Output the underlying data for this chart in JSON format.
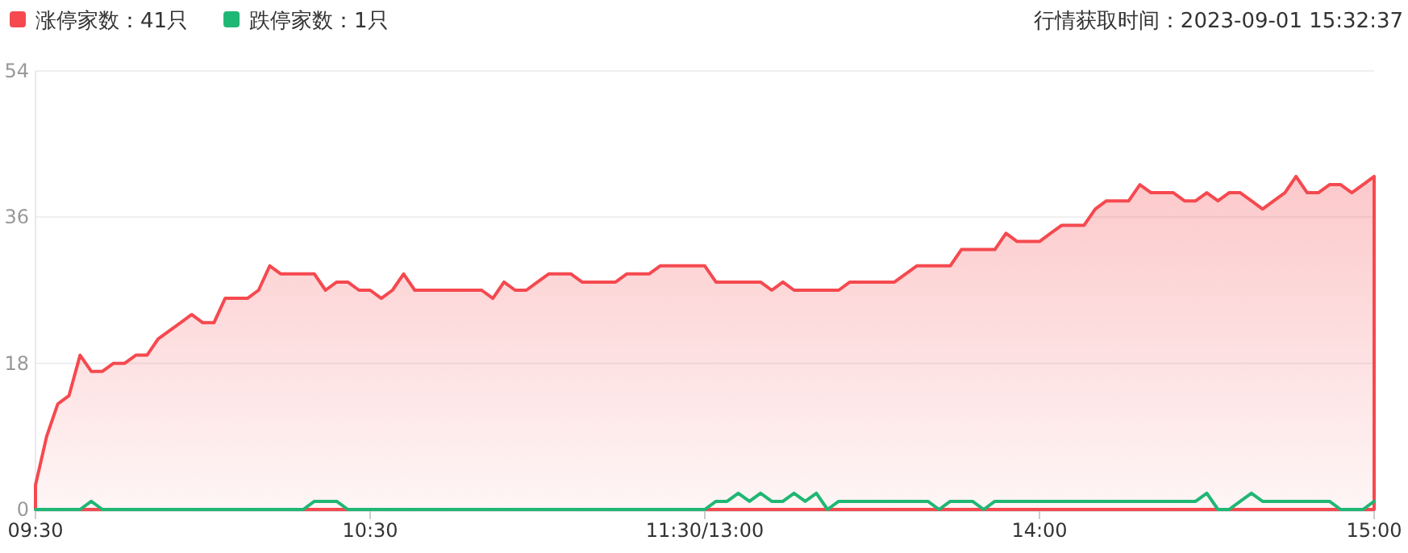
{
  "chart_data": {
    "type": "area",
    "title": "行情获取时间：2023-09-01 15:32:37",
    "categories": [
      "09:30",
      null,
      null,
      null,
      null,
      null,
      null,
      null,
      null,
      null,
      null,
      null,
      null,
      null,
      null,
      null,
      null,
      null,
      null,
      null,
      null,
      null,
      null,
      null,
      null,
      null,
      null,
      null,
      null,
      null,
      "10:30",
      null,
      null,
      null,
      null,
      null,
      null,
      null,
      null,
      null,
      null,
      null,
      null,
      null,
      null,
      null,
      null,
      null,
      null,
      null,
      null,
      null,
      null,
      null,
      null,
      null,
      null,
      null,
      null,
      null,
      "11:30/13:00",
      null,
      null,
      null,
      null,
      null,
      null,
      null,
      null,
      null,
      null,
      null,
      null,
      null,
      null,
      null,
      null,
      null,
      null,
      null,
      null,
      null,
      null,
      null,
      null,
      null,
      null,
      null,
      null,
      null,
      "14:00",
      null,
      null,
      null,
      null,
      null,
      null,
      null,
      null,
      null,
      null,
      null,
      null,
      null,
      null,
      null,
      null,
      null,
      null,
      null,
      null,
      null,
      null,
      null,
      null,
      null,
      null,
      null,
      null,
      null,
      "15:00"
    ],
    "ylim": [
      0,
      54
    ],
    "yticks": [
      0,
      18,
      36,
      54
    ],
    "grid": "y",
    "legend": "top left",
    "series": [
      {
        "name": "涨停家数：41只",
        "color": "#f5494f",
        "values": [
          3,
          9,
          13,
          14,
          19,
          17,
          17,
          18,
          18,
          19,
          19,
          21,
          22,
          23,
          24,
          23,
          23,
          26,
          26,
          26,
          27,
          30,
          29,
          29,
          29,
          29,
          27,
          28,
          28,
          27,
          27,
          26,
          27,
          29,
          27,
          27,
          27,
          27,
          27,
          27,
          27,
          26,
          28,
          27,
          27,
          28,
          29,
          29,
          29,
          28,
          28,
          28,
          28,
          29,
          29,
          29,
          30,
          30,
          30,
          30,
          30,
          28,
          28,
          28,
          28,
          28,
          27,
          28,
          27,
          27,
          27,
          27,
          27,
          28,
          28,
          28,
          28,
          28,
          29,
          30,
          30,
          30,
          30,
          32,
          32,
          32,
          32,
          34,
          33,
          33,
          33,
          34,
          35,
          35,
          35,
          37,
          38,
          38,
          38,
          40,
          39,
          39,
          39,
          38,
          38,
          39,
          38,
          39,
          39,
          38,
          37,
          38,
          39,
          41,
          39,
          39,
          40,
          40,
          39,
          40,
          41
        ]
      },
      {
        "name": "跌停家数：1只",
        "color": "#1fb774",
        "type": "line",
        "values": [
          0,
          0,
          0,
          0,
          0,
          1,
          0,
          0,
          0,
          0,
          0,
          0,
          0,
          0,
          0,
          0,
          0,
          0,
          0,
          0,
          0,
          0,
          0,
          0,
          0,
          1,
          1,
          1,
          0,
          0,
          0,
          0,
          0,
          0,
          0,
          0,
          0,
          0,
          0,
          0,
          0,
          0,
          0,
          0,
          0,
          0,
          0,
          0,
          0,
          0,
          0,
          0,
          0,
          0,
          0,
          0,
          0,
          0,
          0,
          0,
          0,
          1,
          1,
          2,
          1,
          2,
          1,
          1,
          2,
          1,
          2,
          0,
          1,
          1,
          1,
          1,
          1,
          1,
          1,
          1,
          1,
          0,
          1,
          1,
          1,
          0,
          1,
          1,
          1,
          1,
          1,
          1,
          1,
          1,
          1,
          1,
          1,
          1,
          1,
          1,
          1,
          1,
          1,
          1,
          1,
          2,
          0,
          0,
          1,
          2,
          1,
          1,
          1,
          1,
          1,
          1,
          1,
          0,
          0,
          0,
          1
        ]
      }
    ]
  }
}
